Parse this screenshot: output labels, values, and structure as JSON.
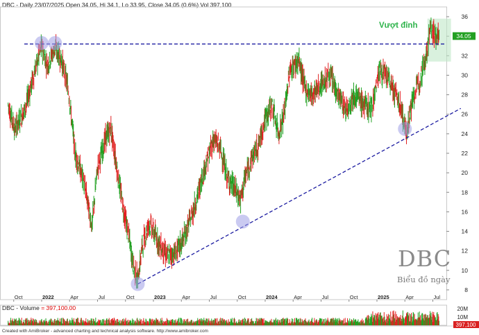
{
  "header": {
    "text": "DBC - Daily 23/07/2025 Open 34.05, Hi 34.1, Lo 33.95, Close 34.05 (0.6%) Vol 397,100"
  },
  "volume_header": {
    "label": "DBC - Volume",
    "value": "= 397,100.00"
  },
  "footer": {
    "text": "Created with AmiBroker - advanced charting and technical analysis software. http://www.amibroker.com"
  },
  "watermark": {
    "title": "DBC",
    "subtitle": "Biểu đồ ngày"
  },
  "annotation": {
    "text": "Vượt đỉnh",
    "color": "#2db34a"
  },
  "colors": {
    "up": "#22a022",
    "down": "#e02020",
    "trendline": "#1a1aa0",
    "marker": "#9e9ee6",
    "price_tag": "#22a022",
    "volume_tag": "#d92020",
    "highlight": "#bfe8c8"
  },
  "chart_data": {
    "type": "candlestick",
    "title": "DBC - Daily 23/07/2025",
    "ylim": [
      7,
      37
    ],
    "y_ticks": [
      8,
      10,
      12,
      14,
      16,
      18,
      20,
      22,
      24,
      26,
      28,
      30,
      32,
      34,
      36
    ],
    "x_ticks": [
      "Oct",
      "2022",
      "Apr",
      "Jul",
      "Oct",
      "2023",
      "Apr",
      "Jul",
      "Oct",
      "2024",
      "Apr",
      "Jul",
      "Oct",
      "2025",
      "Apr",
      "Jul"
    ],
    "last_price": "34.05",
    "last_volume": "397,100",
    "volume_ticks": [
      "20M",
      "10M"
    ],
    "resistance_level": 33.2,
    "support_line": {
      "from": [
        2022.86,
        8.6
      ],
      "to": [
        2025.75,
        26.6
      ]
    },
    "marked_points": [
      {
        "x": 2022.0,
        "y": 33.3
      },
      {
        "x": 2022.12,
        "y": 33.3
      },
      {
        "x": 2022.86,
        "y": 8.6
      },
      {
        "x": 2023.8,
        "y": 15.0
      },
      {
        "x": 2025.25,
        "y": 24.5
      }
    ],
    "price_anchors": [
      [
        2021.7,
        27.0
      ],
      [
        2021.76,
        24.5
      ],
      [
        2021.85,
        26.5
      ],
      [
        2021.93,
        30.0
      ],
      [
        2022.0,
        33.0
      ],
      [
        2022.05,
        31.0
      ],
      [
        2022.12,
        32.8
      ],
      [
        2022.18,
        31.5
      ],
      [
        2022.24,
        28.5
      ],
      [
        2022.3,
        22.0
      ],
      [
        2022.38,
        19.0
      ],
      [
        2022.45,
        14.5
      ],
      [
        2022.5,
        20.5
      ],
      [
        2022.58,
        23.8
      ],
      [
        2022.62,
        24.5
      ],
      [
        2022.66,
        21.5
      ],
      [
        2022.72,
        17.0
      ],
      [
        2022.78,
        13.5
      ],
      [
        2022.82,
        10.5
      ],
      [
        2022.86,
        9.0
      ],
      [
        2022.9,
        12.5
      ],
      [
        2022.96,
        14.8
      ],
      [
        2023.0,
        14.0
      ],
      [
        2023.06,
        12.5
      ],
      [
        2023.12,
        11.5
      ],
      [
        2023.2,
        11.8
      ],
      [
        2023.26,
        13.0
      ],
      [
        2023.3,
        14.2
      ],
      [
        2023.38,
        17.0
      ],
      [
        2023.46,
        20.5
      ],
      [
        2023.54,
        23.5
      ],
      [
        2023.6,
        22.5
      ],
      [
        2023.66,
        19.5
      ],
      [
        2023.72,
        18.5
      ],
      [
        2023.78,
        17.2
      ],
      [
        2023.82,
        19.5
      ],
      [
        2023.88,
        21.5
      ],
      [
        2023.94,
        22.8
      ],
      [
        2024.0,
        25.5
      ],
      [
        2024.06,
        27.0
      ],
      [
        2024.12,
        24.0
      ],
      [
        2024.17,
        26.0
      ],
      [
        2024.22,
        30.5
      ],
      [
        2024.3,
        31.5
      ],
      [
        2024.36,
        28.5
      ],
      [
        2024.42,
        28.0
      ],
      [
        2024.5,
        29.0
      ],
      [
        2024.58,
        30.0
      ],
      [
        2024.65,
        28.0
      ],
      [
        2024.72,
        26.5
      ],
      [
        2024.8,
        28.0
      ],
      [
        2024.88,
        27.0
      ],
      [
        2024.95,
        26.5
      ],
      [
        2025.02,
        30.5
      ],
      [
        2025.08,
        30.0
      ],
      [
        2025.15,
        28.5
      ],
      [
        2025.22,
        26.5
      ],
      [
        2025.26,
        24.0
      ],
      [
        2025.32,
        27.5
      ],
      [
        2025.38,
        29.5
      ],
      [
        2025.44,
        32.0
      ],
      [
        2025.48,
        35.0
      ],
      [
        2025.52,
        34.0
      ],
      [
        2025.56,
        34.05
      ]
    ]
  }
}
